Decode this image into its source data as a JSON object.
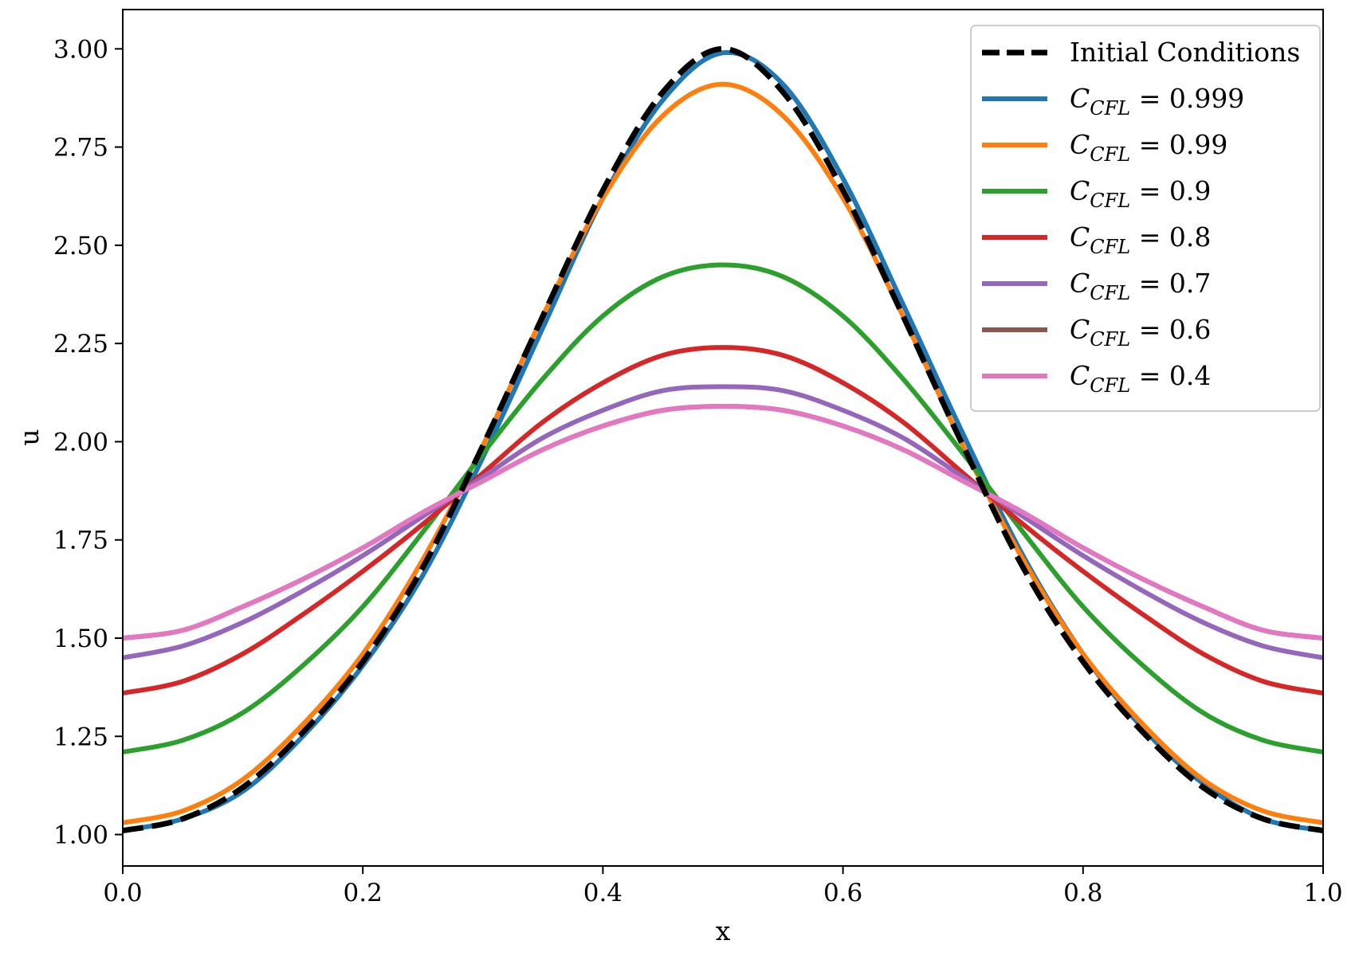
{
  "chart_data": {
    "type": "line",
    "xlabel": "x",
    "ylabel": "u",
    "xlim": [
      0.0,
      1.0
    ],
    "ylim": [
      0.92,
      3.1
    ],
    "xticks": [
      "0.0",
      "0.2",
      "0.4",
      "0.6",
      "0.8",
      "1.0"
    ],
    "yticks": [
      "1.00",
      "1.25",
      "1.50",
      "1.75",
      "2.00",
      "2.25",
      "2.50",
      "2.75",
      "3.00"
    ],
    "grid": false,
    "legend_position": "top-right",
    "x": [
      0.0,
      0.05,
      0.1,
      0.15,
      0.2,
      0.25,
      0.3,
      0.35,
      0.4,
      0.45,
      0.5,
      0.55,
      0.6,
      0.65,
      0.7,
      0.75,
      0.8,
      0.85,
      0.9,
      0.95,
      1.0
    ],
    "series": [
      {
        "name": "Initial Conditions",
        "label_main": "Initial Conditions",
        "label_sub": "",
        "label_value": "",
        "color": "#000000",
        "dashed": true,
        "values": [
          1.01,
          1.04,
          1.12,
          1.26,
          1.44,
          1.68,
          1.99,
          2.32,
          2.64,
          2.89,
          3.0,
          2.89,
          2.64,
          2.32,
          1.99,
          1.68,
          1.44,
          1.26,
          1.12,
          1.04,
          1.01
        ]
      },
      {
        "name": "C_CFL = 0.999",
        "label_main": "C",
        "label_sub": "CFL",
        "label_value": " = 0.999",
        "color": "#1f77b4",
        "dashed": false,
        "values": [
          1.01,
          1.04,
          1.11,
          1.25,
          1.43,
          1.66,
          1.96,
          2.29,
          2.62,
          2.87,
          2.99,
          2.91,
          2.67,
          2.35,
          2.02,
          1.71,
          1.46,
          1.27,
          1.13,
          1.04,
          1.01
        ]
      },
      {
        "name": "C_CFL = 0.99",
        "label_main": "C",
        "label_sub": "CFL",
        "label_value": " = 0.99",
        "color": "#ff7f0e",
        "dashed": false,
        "values": [
          1.03,
          1.06,
          1.14,
          1.28,
          1.46,
          1.7,
          1.99,
          2.32,
          2.62,
          2.83,
          2.91,
          2.83,
          2.62,
          2.32,
          1.99,
          1.7,
          1.46,
          1.28,
          1.14,
          1.06,
          1.03
        ]
      },
      {
        "name": "C_CFL = 0.9",
        "label_main": "C",
        "label_sub": "CFL",
        "label_value": " = 0.9",
        "color": "#2ca02c",
        "dashed": false,
        "values": [
          1.21,
          1.24,
          1.31,
          1.43,
          1.58,
          1.77,
          1.97,
          2.16,
          2.32,
          2.42,
          2.45,
          2.42,
          2.32,
          2.16,
          1.97,
          1.77,
          1.58,
          1.43,
          1.31,
          1.24,
          1.21
        ]
      },
      {
        "name": "C_CFL = 0.8",
        "label_main": "C",
        "label_sub": "CFL",
        "label_value": " = 0.8",
        "color": "#d62728",
        "dashed": false,
        "values": [
          1.36,
          1.39,
          1.46,
          1.56,
          1.67,
          1.79,
          1.92,
          2.05,
          2.15,
          2.22,
          2.24,
          2.22,
          2.15,
          2.05,
          1.92,
          1.79,
          1.67,
          1.56,
          1.46,
          1.39,
          1.36
        ]
      },
      {
        "name": "C_CFL = 0.7",
        "label_main": "C",
        "label_sub": "CFL",
        "label_value": " = 0.7",
        "color": "#9467bd",
        "dashed": false,
        "values": [
          1.45,
          1.48,
          1.54,
          1.62,
          1.71,
          1.81,
          1.91,
          2.01,
          2.08,
          2.13,
          2.14,
          2.13,
          2.08,
          2.01,
          1.91,
          1.81,
          1.71,
          1.62,
          1.54,
          1.48,
          1.45
        ]
      },
      {
        "name": "C_CFL = 0.6",
        "label_main": "C",
        "label_sub": "CFL",
        "label_value": " = 0.6",
        "color": "#8c564b",
        "dashed": false,
        "values": [
          1.5,
          1.52,
          1.58,
          1.65,
          1.73,
          1.82,
          1.9,
          1.98,
          2.04,
          2.08,
          2.09,
          2.08,
          2.04,
          1.98,
          1.9,
          1.82,
          1.73,
          1.65,
          1.58,
          1.52,
          1.5
        ]
      },
      {
        "name": "C_CFL = 0.4",
        "label_main": "C",
        "label_sub": "CFL",
        "label_value": " = 0.4",
        "color": "#e377c2",
        "dashed": false,
        "values": [
          1.5,
          1.52,
          1.58,
          1.65,
          1.73,
          1.82,
          1.9,
          1.98,
          2.04,
          2.08,
          2.09,
          2.08,
          2.04,
          1.98,
          1.9,
          1.82,
          1.73,
          1.65,
          1.58,
          1.52,
          1.5
        ]
      }
    ]
  }
}
